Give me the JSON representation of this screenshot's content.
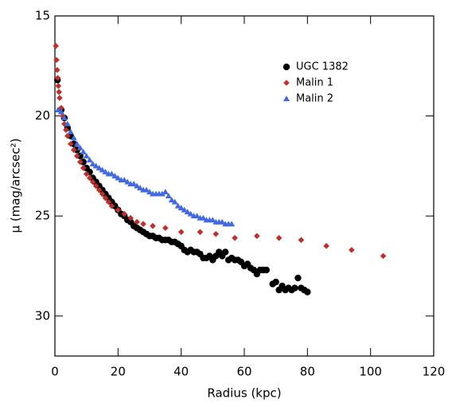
{
  "chart_data": {
    "type": "scatter",
    "x_label": "Radius (kpc)",
    "y_label": "μ (mag/arcsec²)",
    "xlim": [
      0,
      120
    ],
    "xticks": [
      0,
      20,
      40,
      60,
      80,
      100,
      120
    ],
    "ylim": [
      32,
      15
    ],
    "yticks": [
      15,
      20,
      25,
      30
    ],
    "y_inverted": true,
    "legend": "upper right",
    "series": [
      {
        "name": "UGC 1382",
        "color": "#000000",
        "marker": "circle",
        "x": [
          0.8,
          2,
          3,
          4,
          5,
          6,
          7,
          8,
          9,
          10,
          11,
          12,
          13,
          14,
          15,
          16,
          17,
          18,
          19,
          20,
          21,
          22,
          23,
          24,
          25,
          26,
          27,
          28,
          29,
          30,
          31,
          32,
          33,
          34,
          35,
          36,
          37,
          38,
          39,
          40,
          41,
          42,
          43,
          44,
          45,
          46,
          47,
          48,
          49,
          50,
          51,
          52,
          53,
          54,
          55,
          56,
          57,
          58,
          59,
          60,
          61,
          62,
          63,
          64,
          65,
          66,
          67,
          69,
          70,
          71,
          72,
          73,
          74,
          75,
          76,
          77,
          78,
          79,
          80
        ],
        "values": [
          18.2,
          19.7,
          20.1,
          20.6,
          21.0,
          21.4,
          21.7,
          22.0,
          22.3,
          22.6,
          22.8,
          23.1,
          23.3,
          23.5,
          23.7,
          23.9,
          24.1,
          24.3,
          24.5,
          24.7,
          24.9,
          25.0,
          25.2,
          25.3,
          25.5,
          25.6,
          25.7,
          25.8,
          25.9,
          26.0,
          26.0,
          26.1,
          26.1,
          26.2,
          26.2,
          26.2,
          26.3,
          26.3,
          26.4,
          26.5,
          26.7,
          26.8,
          26.7,
          26.8,
          26.8,
          26.9,
          27.1,
          27.1,
          27.0,
          27.2,
          27.0,
          26.8,
          27.0,
          26.8,
          27.2,
          27.1,
          27.2,
          27.2,
          27.3,
          27.5,
          27.4,
          27.6,
          27.7,
          27.9,
          27.7,
          27.7,
          27.7,
          28.4,
          28.3,
          28.7,
          28.5,
          28.7,
          28.6,
          28.7,
          28.6,
          28.1,
          28.6,
          28.7,
          28.8
        ]
      },
      {
        "name": "Malin 1",
        "color": "#c0302a",
        "marker": "diamond",
        "x": [
          0.3,
          0.5,
          0.7,
          0.9,
          1.1,
          1.3,
          1.5,
          2,
          2.5,
          3,
          3.5,
          4,
          5,
          6,
          7,
          8,
          9,
          10,
          11,
          12,
          13,
          14,
          15,
          16,
          17,
          18,
          20,
          22,
          24,
          26,
          28,
          31,
          35,
          40,
          46,
          51,
          57,
          64,
          71,
          78,
          86,
          94,
          104
        ],
        "values": [
          16.5,
          17.2,
          17.7,
          18.1,
          18.5,
          18.8,
          19.1,
          19.6,
          20.0,
          20.4,
          20.7,
          21.0,
          21.4,
          21.7,
          22.0,
          22.3,
          22.6,
          22.9,
          23.1,
          23.3,
          23.5,
          23.7,
          23.9,
          24.1,
          24.3,
          24.5,
          24.7,
          24.9,
          25.1,
          25.3,
          25.4,
          25.5,
          25.6,
          25.8,
          25.8,
          25.9,
          26.1,
          26.0,
          26.1,
          26.2,
          26.5,
          26.7,
          27.0
        ]
      },
      {
        "name": "Malin 2",
        "color": "#4169e1",
        "marker": "triangle",
        "x": [
          1,
          2,
          3,
          4,
          5,
          6,
          7,
          8,
          9,
          10,
          11,
          12,
          13,
          14,
          15,
          16,
          17,
          18,
          19,
          20,
          21,
          22,
          23,
          24,
          25,
          26,
          27,
          28,
          29,
          30,
          31,
          32,
          33,
          34,
          35,
          36,
          37,
          38,
          39,
          40,
          41,
          42,
          43,
          44,
          45,
          46,
          47,
          48,
          49,
          50,
          51,
          52,
          53,
          54,
          55,
          56
        ],
        "values": [
          19.7,
          19.8,
          20.1,
          20.4,
          20.8,
          21.1,
          21.4,
          21.6,
          21.8,
          22.0,
          22.2,
          22.4,
          22.5,
          22.6,
          22.7,
          22.8,
          22.9,
          22.9,
          23.0,
          23.1,
          23.2,
          23.2,
          23.3,
          23.4,
          23.4,
          23.5,
          23.6,
          23.7,
          23.7,
          23.8,
          23.9,
          23.9,
          23.9,
          23.9,
          23.8,
          24.0,
          24.2,
          24.3,
          24.5,
          24.6,
          24.7,
          24.8,
          24.9,
          25.0,
          25.0,
          25.1,
          25.1,
          25.2,
          25.2,
          25.2,
          25.3,
          25.3,
          25.3,
          25.4,
          25.4,
          25.4
        ]
      }
    ]
  }
}
